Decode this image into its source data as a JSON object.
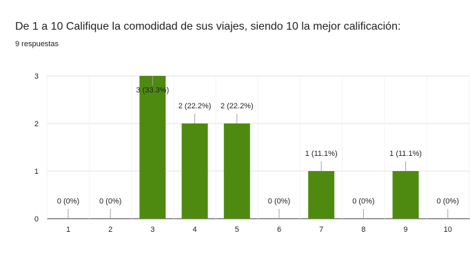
{
  "header": {
    "title": "De 1 a 10 Califique la comodidad de sus viajes, siendo 10 la mejor calificación:",
    "subtitle": "9 respuestas"
  },
  "chart_data": {
    "type": "bar",
    "categories": [
      "1",
      "2",
      "3",
      "4",
      "5",
      "6",
      "7",
      "8",
      "9",
      "10"
    ],
    "values": [
      0,
      0,
      3,
      2,
      2,
      0,
      1,
      0,
      1,
      0
    ],
    "data_labels": [
      "0 (0%)",
      "0 (0%)",
      "3 (33.3%)",
      "2 (22.2%)",
      "2 (22.2%)",
      "0 (0%)",
      "1 (11.1%)",
      "0 (0%)",
      "1 (11.1%)",
      "0 (0%)"
    ],
    "y_ticks": [
      "0",
      "1",
      "2",
      "3"
    ],
    "ylim": [
      0,
      3
    ],
    "grid": true,
    "bar_color": "#4f8a10"
  }
}
